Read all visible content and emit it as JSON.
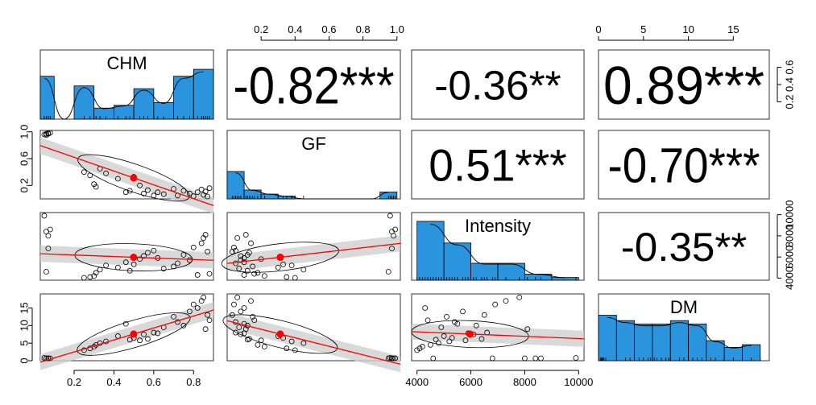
{
  "chart_data": {
    "type": "scatter",
    "title": "",
    "variables": [
      "CHM",
      "GF",
      "Intensity",
      "DM"
    ],
    "correlations": [
      {
        "pair": [
          "CHM",
          "GF"
        ],
        "label": "-0.82***",
        "value": -0.82
      },
      {
        "pair": [
          "CHM",
          "Intensity"
        ],
        "label": "-0.36**",
        "value": -0.36
      },
      {
        "pair": [
          "CHM",
          "DM"
        ],
        "label": "0.89***",
        "value": 0.89
      },
      {
        "pair": [
          "GF",
          "Intensity"
        ],
        "label": "0.51***",
        "value": 0.51
      },
      {
        "pair": [
          "GF",
          "DM"
        ],
        "label": "-0.70***",
        "value": -0.7
      },
      {
        "pair": [
          "Intensity",
          "DM"
        ],
        "label": "-0.35**",
        "value": -0.35
      }
    ],
    "axes": {
      "CHM": {
        "range": [
          0.03,
          0.9
        ],
        "ticks": [
          0.2,
          0.4,
          0.6,
          0.8
        ],
        "tick_labels": [
          "0.2",
          "0.4",
          "0.6",
          "0.8"
        ]
      },
      "GF": {
        "range": [
          0.0,
          1.02
        ],
        "ticks": [
          0.2,
          0.6,
          1.0
        ],
        "tick_labels": [
          "0.2",
          "0.6",
          "1.0"
        ],
        "top_ticks": [
          0.2,
          0.4,
          0.6,
          0.8,
          1.0
        ],
        "top_tick_labels": [
          "0.2",
          "0.4",
          "0.6",
          "0.8",
          "1.0"
        ]
      },
      "Intensity": {
        "range": [
          3800,
          10200
        ],
        "ticks": [
          4000,
          6000,
          8000,
          10000
        ],
        "tick_labels": [
          "4000",
          "6000",
          "8000",
          "10000"
        ]
      },
      "DM": {
        "range": [
          0,
          19
        ],
        "ticks": [
          0,
          5,
          10,
          15
        ],
        "tick_labels": [
          "0",
          "5",
          "10",
          "15"
        ]
      }
    },
    "right_axis_row1": {
      "range": [
        0.0,
        0.8
      ],
      "ticks": [
        0.2,
        0.4,
        0.6
      ],
      "tick_labels": [
        "0.2",
        "0.4",
        "0.6"
      ]
    },
    "histograms": {
      "CHM": {
        "bin_width": 0.1,
        "bin_start": 0.0,
        "heights": [
          0.62,
          0.0,
          0.48,
          0.16,
          0.2,
          0.44,
          0.24,
          0.62,
          0.72
        ]
      },
      "GF": {
        "bin_width": 0.1,
        "bin_start": 0.0,
        "heights": [
          0.4,
          0.13,
          0.07,
          0.04,
          0.0,
          0.0,
          0.0,
          0.0,
          0.0,
          0.1
        ]
      },
      "Intensity": {
        "bin_width": 1000,
        "bin_start": 4000,
        "heights": [
          0.87,
          0.55,
          0.25,
          0.25,
          0.09,
          0.04
        ]
      },
      "DM": {
        "bin_width": 2,
        "bin_start": 0,
        "heights": [
          0.68,
          0.6,
          0.55,
          0.55,
          0.6,
          0.55,
          0.3,
          0.2,
          0.24
        ]
      }
    },
    "points": [
      {
        "CHM": 0.06,
        "GF": 0.97,
        "Intensity": 8400,
        "DM": 0.5
      },
      {
        "CHM": 0.07,
        "GF": 0.98,
        "Intensity": 8000,
        "DM": 0.3
      },
      {
        "CHM": 0.05,
        "GF": 0.96,
        "Intensity": 9900,
        "DM": 0.8
      },
      {
        "CHM": 0.08,
        "GF": 0.99,
        "Intensity": 8600,
        "DM": 0.4
      },
      {
        "CHM": 0.06,
        "GF": 0.95,
        "Intensity": 4600,
        "DM": 0.6
      },
      {
        "CHM": 0.07,
        "GF": 0.97,
        "Intensity": 6800,
        "DM": 0.2
      },
      {
        "CHM": 0.25,
        "GF": 0.4,
        "Intensity": 4000,
        "DM": 3.0
      },
      {
        "CHM": 0.28,
        "GF": 0.35,
        "Intensity": 4100,
        "DM": 3.5
      },
      {
        "CHM": 0.3,
        "GF": 0.22,
        "Intensity": 4200,
        "DM": 4.0
      },
      {
        "CHM": 0.31,
        "GF": 0.18,
        "Intensity": 4500,
        "DM": 4.5
      },
      {
        "CHM": 0.33,
        "GF": 0.45,
        "Intensity": 4800,
        "DM": 5.0
      },
      {
        "CHM": 0.36,
        "GF": 0.38,
        "Intensity": 5200,
        "DM": 5.5
      },
      {
        "CHM": 0.42,
        "GF": 0.3,
        "Intensity": 5000,
        "DM": 7.0
      },
      {
        "CHM": 0.46,
        "GF": 0.1,
        "Intensity": 5500,
        "DM": 10.5
      },
      {
        "CHM": 0.48,
        "GF": 0.12,
        "Intensity": 4700,
        "DM": 6.0
      },
      {
        "CHM": 0.5,
        "GF": 0.33,
        "Intensity": 5300,
        "DM": 6.5
      },
      {
        "CHM": 0.53,
        "GF": 0.2,
        "Intensity": 5800,
        "DM": 5.8
      },
      {
        "CHM": 0.55,
        "GF": 0.08,
        "Intensity": 6100,
        "DM": 7.5
      },
      {
        "CHM": 0.57,
        "GF": 0.13,
        "Intensity": 6400,
        "DM": 6.2
      },
      {
        "CHM": 0.6,
        "GF": 0.05,
        "Intensity": 6600,
        "DM": 8.0
      },
      {
        "CHM": 0.62,
        "GF": 0.1,
        "Intensity": 5900,
        "DM": 7.8
      },
      {
        "CHM": 0.65,
        "GF": 0.07,
        "Intensity": 4900,
        "DM": 9.5
      },
      {
        "CHM": 0.7,
        "GF": 0.15,
        "Intensity": 5100,
        "DM": 12.5
      },
      {
        "CHM": 0.72,
        "GF": 0.05,
        "Intensity": 5400,
        "DM": 11.0
      },
      {
        "CHM": 0.75,
        "GF": 0.12,
        "Intensity": 6200,
        "DM": 10.0
      },
      {
        "CHM": 0.78,
        "GF": 0.08,
        "Intensity": 5700,
        "DM": 14.0
      },
      {
        "CHM": 0.8,
        "GF": 0.04,
        "Intensity": 6900,
        "DM": 16.0
      },
      {
        "CHM": 0.82,
        "GF": 0.1,
        "Intensity": 4300,
        "DM": 15.0
      },
      {
        "CHM": 0.84,
        "GF": 0.14,
        "Intensity": 7300,
        "DM": 17.0
      },
      {
        "CHM": 0.85,
        "GF": 0.06,
        "Intensity": 7800,
        "DM": 18.0
      },
      {
        "CHM": 0.86,
        "GF": 0.11,
        "Intensity": 8100,
        "DM": 9.0
      },
      {
        "CHM": 0.87,
        "GF": 0.03,
        "Intensity": 6500,
        "DM": 13.0
      },
      {
        "CHM": 0.88,
        "GF": 0.16,
        "Intensity": 4400,
        "DM": 11.5
      }
    ],
    "means": {
      "CHM": 0.52,
      "GF": 0.33,
      "Intensity": 5600,
      "DM": 7.3
    },
    "colors": {
      "histogram": "#2b94de",
      "fit_line": "#ff0000",
      "mean_point": "#ff0000",
      "confidence_band": "#d0d0d0"
    }
  }
}
